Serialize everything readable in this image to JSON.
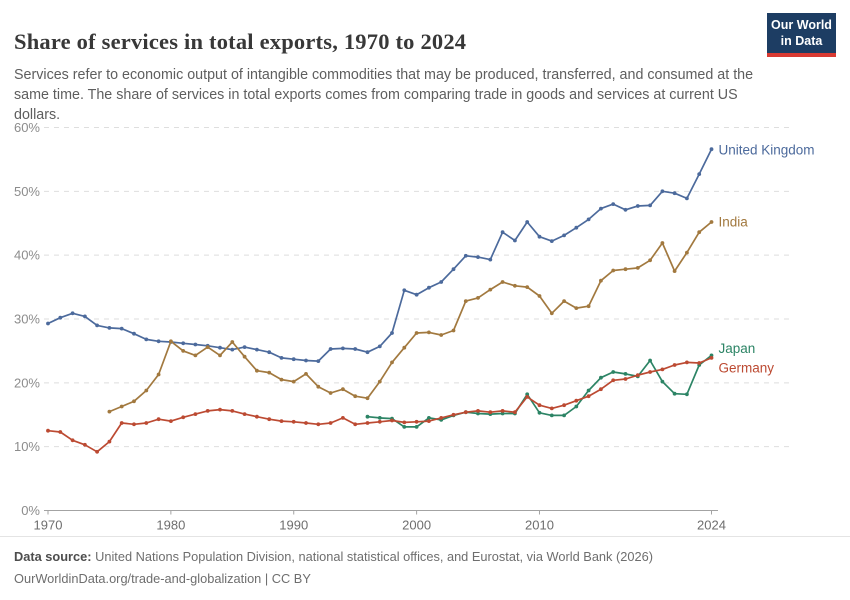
{
  "header": {
    "title": "Share of services in total exports, 1970 to 2024",
    "subtitle": "Services refer to economic output of intangible commodities that may be produced, transferred, and consumed at the same time. The share of services in total exports comes from comparing trade in goods and services at current US dollars.",
    "logo": {
      "line1": "Our World",
      "line2": "in Data",
      "bg_color": "#1d3d63",
      "accent_color": "#d93a32"
    }
  },
  "chart_data": {
    "type": "line",
    "title": "Share of services in total exports, 1970 to 2024",
    "xlabel": "",
    "ylabel": "",
    "x_ticks": [
      1970,
      1980,
      1990,
      2000,
      2010,
      2024
    ],
    "y_ticks": [
      0,
      10,
      20,
      30,
      40,
      50,
      60
    ],
    "y_tick_suffix": "%",
    "xlim": [
      1970,
      2024
    ],
    "ylim": [
      0,
      60
    ],
    "grid": "horizontal-dashed",
    "legend_position": "line-end-labels",
    "axis_color": "#a3a3a3",
    "grid_color": "#dedede",
    "tick_label_color": "#8c8c8c",
    "series": [
      {
        "name": "United Kingdom",
        "color": "#4c6a9c",
        "start_year": 1970,
        "values": [
          29.3,
          30.2,
          30.9,
          30.4,
          29.0,
          28.6,
          28.5,
          27.7,
          26.8,
          26.5,
          26.4,
          26.2,
          26.0,
          25.8,
          25.5,
          25.2,
          25.6,
          25.2,
          24.8,
          23.9,
          23.7,
          23.5,
          23.4,
          25.3,
          25.4,
          25.3,
          24.8,
          25.7,
          27.8,
          34.5,
          33.8,
          34.9,
          35.8,
          37.8,
          39.9,
          39.7,
          39.3,
          43.6,
          42.3,
          45.2,
          42.9,
          42.2,
          43.1,
          44.3,
          45.6,
          47.3,
          48.0,
          47.1,
          47.7,
          47.8,
          50.0,
          49.7,
          48.9,
          52.7,
          56.6
        ]
      },
      {
        "name": "India",
        "color": "#a2793f",
        "start_year": 1975,
        "values": [
          15.5,
          16.3,
          17.1,
          18.8,
          21.3,
          26.5,
          25.0,
          24.3,
          25.6,
          24.3,
          26.4,
          24.1,
          21.9,
          21.6,
          20.5,
          20.2,
          21.4,
          19.4,
          18.4,
          19.0,
          17.9,
          17.6,
          20.2,
          23.2,
          25.5,
          27.8,
          27.9,
          27.5,
          28.2,
          32.8,
          33.3,
          34.6,
          35.8,
          35.2,
          35.0,
          33.6,
          30.9,
          32.8,
          31.7,
          32.0,
          36.0,
          37.6,
          37.8,
          38.0,
          39.2,
          41.9,
          37.5,
          40.4,
          43.6,
          45.2
        ]
      },
      {
        "name": "Japan",
        "color": "#2c8465",
        "start_year": 1996,
        "values": [
          14.7,
          14.5,
          14.4,
          13.1,
          13.1,
          14.5,
          14.2,
          14.9,
          15.4,
          15.2,
          15.1,
          15.2,
          15.2,
          18.2,
          15.3,
          14.9,
          14.9,
          16.3,
          18.8,
          20.8,
          21.7,
          21.4,
          21.0,
          23.5,
          20.2,
          18.3,
          18.2,
          22.8,
          24.3
        ]
      },
      {
        "name": "Germany",
        "color": "#bc4a32",
        "start_year": 1970,
        "values": [
          12.5,
          12.3,
          11.0,
          10.3,
          9.2,
          10.8,
          13.7,
          13.5,
          13.7,
          14.3,
          14.0,
          14.6,
          15.1,
          15.6,
          15.8,
          15.6,
          15.1,
          14.7,
          14.3,
          14.0,
          13.9,
          13.7,
          13.5,
          13.7,
          14.5,
          13.5,
          13.7,
          13.9,
          14.1,
          13.8,
          13.9,
          14.0,
          14.5,
          15.0,
          15.4,
          15.6,
          15.4,
          15.6,
          15.4,
          17.8,
          16.5,
          16.0,
          16.5,
          17.2,
          17.9,
          19.0,
          20.4,
          20.6,
          21.2,
          21.7,
          22.1,
          22.8,
          23.2,
          23.1,
          23.9
        ]
      }
    ]
  },
  "footer": {
    "data_source_label": "Data source:",
    "data_source_text": " United Nations Population Division, national statistical offices, and Eurostat, via World Bank (2026)",
    "link": "OurWorldinData.org/trade-and-globalization",
    "separator": " | ",
    "license": "CC BY"
  }
}
